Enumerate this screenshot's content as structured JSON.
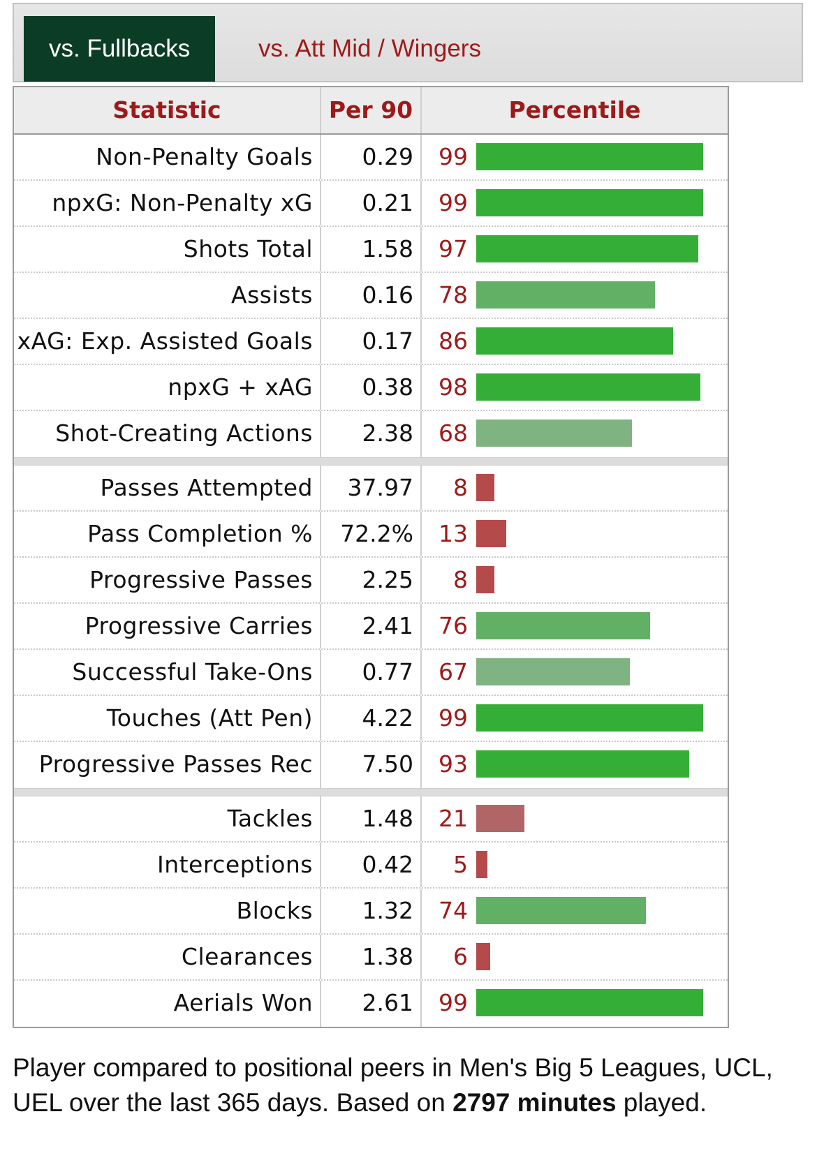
{
  "tabs": {
    "active": "vs. Fullbacks",
    "inactive": "vs. Att Mid / Wingers"
  },
  "table": {
    "headers": {
      "statistic": "Statistic",
      "per90": "Per 90",
      "percentile": "Percentile"
    },
    "max_percentile": 100,
    "groups": [
      [
        {
          "stat": "Non-Penalty Goals",
          "per90": "0.29",
          "percentile": 99
        },
        {
          "stat": "npxG: Non-Penalty xG",
          "per90": "0.21",
          "percentile": 99
        },
        {
          "stat": "Shots Total",
          "per90": "1.58",
          "percentile": 97
        },
        {
          "stat": "Assists",
          "per90": "0.16",
          "percentile": 78
        },
        {
          "stat": "xAG: Exp. Assisted Goals",
          "per90": "0.17",
          "percentile": 86
        },
        {
          "stat": "npxG + xAG",
          "per90": "0.38",
          "percentile": 98
        },
        {
          "stat": "Shot-Creating Actions",
          "per90": "2.38",
          "percentile": 68
        }
      ],
      [
        {
          "stat": "Passes Attempted",
          "per90": "37.97",
          "percentile": 8
        },
        {
          "stat": "Pass Completion %",
          "per90": "72.2%",
          "percentile": 13
        },
        {
          "stat": "Progressive Passes",
          "per90": "2.25",
          "percentile": 8
        },
        {
          "stat": "Progressive Carries",
          "per90": "2.41",
          "percentile": 76
        },
        {
          "stat": "Successful Take-Ons",
          "per90": "0.77",
          "percentile": 67
        },
        {
          "stat": "Touches (Att Pen)",
          "per90": "4.22",
          "percentile": 99
        },
        {
          "stat": "Progressive Passes Rec",
          "per90": "7.50",
          "percentile": 93
        }
      ],
      [
        {
          "stat": "Tackles",
          "per90": "1.48",
          "percentile": 21
        },
        {
          "stat": "Interceptions",
          "per90": "0.42",
          "percentile": 5
        },
        {
          "stat": "Blocks",
          "per90": "1.32",
          "percentile": 74
        },
        {
          "stat": "Clearances",
          "per90": "1.38",
          "percentile": 6
        },
        {
          "stat": "Aerials Won",
          "per90": "2.61",
          "percentile": 99
        }
      ]
    ]
  },
  "colors": {
    "high": "#35ae37",
    "mid_high": "#62b066",
    "mid": "#7fb381",
    "low": "#b54a4a",
    "low_mid": "#b06666",
    "accent_red": "#9e1a1a",
    "tab_active_bg": "#0b3d26"
  },
  "footer": {
    "text_before": "Player compared to positional peers in Men's Big 5 Leagues, UCL, UEL over the last 365 days. Based on ",
    "minutes": "2797",
    "minutes_label": "minutes",
    "text_after": " played."
  }
}
